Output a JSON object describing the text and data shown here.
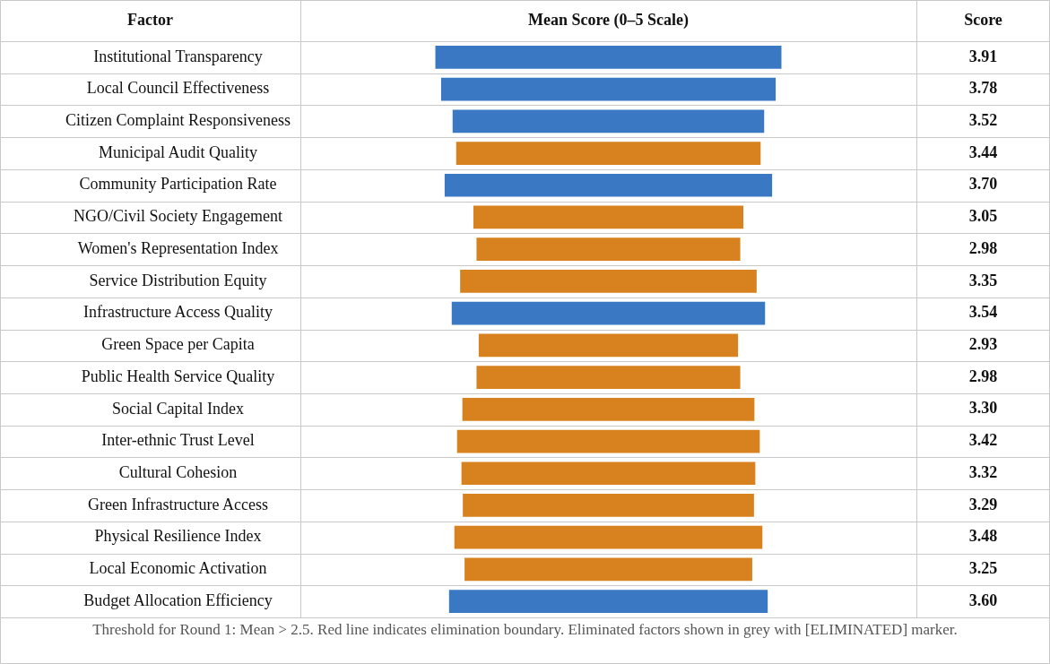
{
  "chart_data": {
    "type": "other",
    "ylabel": "Factor",
    "xlabel": "Mean Score (0–5 Scale)",
    "categories": [
      "Institutional Transparency",
      "Local Council Effectiveness",
      "Citizen Complaint Responsiveness",
      "Municipal Audit Quality",
      "Community Participation Rate",
      "NGO/Civil Society Engagement",
      "Women's Representation Index",
      "Service Distribution Equity",
      "Infrastructure Access Quality",
      "Green Space per Capita",
      "Public Health Service Quality",
      "Social Capital Index",
      "Inter-ethnic Trust Level",
      "Cultural Cohesion",
      "Green Infrastructure Access",
      "Physical Resilience Index",
      "Local Economic Activation",
      "Budget Allocation Efficiency"
    ],
    "values": [
      3.91,
      3.78,
      3.52,
      3.44,
      3.7,
      3.05,
      2.98,
      3.35,
      3.54,
      2.93,
      2.98,
      3.3,
      3.42,
      3.32,
      3.29,
      3.48,
      3.25,
      3.6
    ],
    "value_labels": [
      "3.91",
      "3.78",
      "3.52",
      "3.44",
      "3.70",
      "3.05",
      "2.98",
      "3.35",
      "3.54",
      "2.93",
      "2.98",
      "3.30",
      "3.42",
      "3.32",
      "3.29",
      "3.48",
      "3.25",
      "3.60"
    ],
    "colors": [
      "#3b78c3",
      "#3b78c3",
      "#3b78c3",
      "#d7821e",
      "#3b78c3",
      "#d7821e",
      "#d7821e",
      "#d7821e",
      "#3b78c3",
      "#d7821e",
      "#d7821e",
      "#d7821e",
      "#d7821e",
      "#d7821e",
      "#d7821e",
      "#d7821e",
      "#d7821e",
      "#3b78c3"
    ],
    "annotations": [
      "Score",
      "Threshold for Round 1: Mean > 2.5. Red line indicates elimination boundary. Eliminated factors shown in grey with [ELIMINATED] marker."
    ]
  }
}
